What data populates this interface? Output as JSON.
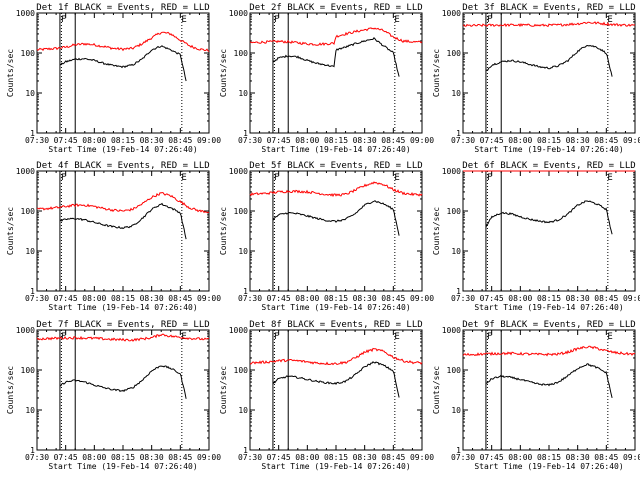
{
  "figure": {
    "xlabel": "Start Time (19-Feb-14 07:26:40)",
    "ylabel": "Counts/sec",
    "x_tick_labels": [
      "07:30",
      "07:45",
      "08:00",
      "08:15",
      "08:30",
      "08:45",
      "09:00"
    ],
    "y_tick_labels": [
      "1",
      "10",
      "100",
      "1000"
    ],
    "marker_letters": [
      "F",
      "E"
    ],
    "colors": {
      "events": "#000000",
      "lld": "#ff0000",
      "axes": "#000000",
      "background": "#ffffff"
    }
  },
  "chart_data": [
    {
      "type": "line",
      "title": "Det 1f BLACK = Events, RED = LLD",
      "xlabel": "Start Time (19-Feb-14 07:26:40)",
      "ylabel": "Counts/sec",
      "ylog": true,
      "ylim": [
        1,
        1000
      ],
      "xlim": [
        "07:30",
        "09:00"
      ],
      "vlines_solid": [
        "07:42",
        "07:50"
      ],
      "vlines_dotted": [
        "07:42",
        "08:45"
      ],
      "markers": [
        {
          "label": "F",
          "x": "07:42"
        },
        {
          "label": "E",
          "x": "08:45"
        }
      ],
      "series": [
        {
          "name": "Events",
          "color": "#000000",
          "x": [
            "07:42",
            "07:45",
            "07:50",
            "07:55",
            "08:00",
            "08:05",
            "08:10",
            "08:15",
            "08:20",
            "08:25",
            "08:30",
            "08:35",
            "08:40",
            "08:45",
            "08:48"
          ],
          "y": [
            50,
            60,
            70,
            72,
            65,
            55,
            48,
            45,
            50,
            70,
            120,
            150,
            120,
            90,
            20
          ]
        },
        {
          "name": "LLD",
          "color": "#ff0000",
          "x": [
            "07:30",
            "07:35",
            "07:40",
            "07:45",
            "07:50",
            "07:55",
            "08:00",
            "08:05",
            "08:10",
            "08:15",
            "08:20",
            "08:25",
            "08:30",
            "08:35",
            "08:40",
            "08:45",
            "08:50",
            "08:55",
            "09:00"
          ],
          "y": [
            120,
            125,
            130,
            140,
            160,
            170,
            160,
            145,
            130,
            125,
            130,
            170,
            240,
            330,
            300,
            210,
            150,
            125,
            115
          ]
        }
      ]
    },
    {
      "type": "line",
      "title": "Det 2f BLACK = Events, RED = LLD",
      "xlabel": "Start Time (19-Feb-14 07:26:40)",
      "ylabel": "Counts/sec",
      "ylog": true,
      "ylim": [
        1,
        1000
      ],
      "xlim": [
        "07:30",
        "09:00"
      ],
      "vlines_solid": [
        "07:42",
        "07:50"
      ],
      "vlines_dotted": [
        "07:42",
        "08:45"
      ],
      "markers": [
        {
          "label": "F",
          "x": "07:42"
        },
        {
          "label": "E",
          "x": "08:45"
        }
      ],
      "series": [
        {
          "name": "Events",
          "color": "#000000",
          "x": [
            "07:42",
            "07:45",
            "07:50",
            "07:55",
            "08:00",
            "08:05",
            "08:10",
            "08:14",
            "08:15",
            "08:20",
            "08:25",
            "08:30",
            "08:35",
            "08:40",
            "08:45",
            "08:48"
          ],
          "y": [
            60,
            75,
            85,
            80,
            65,
            55,
            50,
            45,
            120,
            140,
            170,
            200,
            230,
            150,
            100,
            25
          ]
        },
        {
          "name": "LLD",
          "color": "#ff0000",
          "x": [
            "07:30",
            "07:35",
            "07:40",
            "07:45",
            "07:50",
            "07:55",
            "08:00",
            "08:05",
            "08:10",
            "08:14",
            "08:15",
            "08:20",
            "08:25",
            "08:30",
            "08:35",
            "08:40",
            "08:45",
            "08:50",
            "08:55",
            "09:00"
          ],
          "y": [
            180,
            185,
            190,
            195,
            190,
            180,
            170,
            165,
            170,
            175,
            260,
            300,
            340,
            380,
            420,
            360,
            250,
            200,
            190,
            185
          ]
        }
      ]
    },
    {
      "type": "line",
      "title": "Det 3f BLACK = Events, RED = LLD",
      "xlabel": "Start Time (19-Feb-14 07:26:40)",
      "ylabel": "Counts/sec",
      "ylog": true,
      "ylim": [
        1,
        1000
      ],
      "xlim": [
        "07:30",
        "09:00"
      ],
      "vlines_solid": [
        "07:42",
        "07:50"
      ],
      "vlines_dotted": [
        "07:42",
        "08:45"
      ],
      "markers": [
        {
          "label": "F",
          "x": "07:42"
        },
        {
          "label": "E",
          "x": "08:45"
        }
      ],
      "series": [
        {
          "name": "Events",
          "color": "#000000",
          "x": [
            "07:42",
            "07:45",
            "07:50",
            "07:55",
            "08:00",
            "08:05",
            "08:10",
            "08:15",
            "08:20",
            "08:25",
            "08:30",
            "08:35",
            "08:40",
            "08:45",
            "08:48"
          ],
          "y": [
            35,
            50,
            60,
            65,
            60,
            52,
            45,
            42,
            48,
            65,
            110,
            160,
            140,
            100,
            25
          ]
        },
        {
          "name": "LLD",
          "color": "#ff0000",
          "x": [
            "07:30",
            "07:40",
            "07:50",
            "08:00",
            "08:10",
            "08:20",
            "08:30",
            "08:35",
            "08:40",
            "08:50",
            "09:00"
          ],
          "y": [
            480,
            490,
            500,
            500,
            490,
            500,
            540,
            580,
            560,
            510,
            490
          ]
        }
      ]
    },
    {
      "type": "line",
      "title": "Det 4f BLACK = Events, RED = LLD",
      "xlabel": "Start Time (19-Feb-14 07:26:40)",
      "ylabel": "Counts/sec",
      "ylog": true,
      "ylim": [
        1,
        1000
      ],
      "xlim": [
        "07:30",
        "09:00"
      ],
      "vlines_solid": [
        "07:42",
        "07:50"
      ],
      "vlines_dotted": [
        "07:42",
        "08:45"
      ],
      "markers": [
        {
          "label": "F",
          "x": "07:42"
        },
        {
          "label": "E",
          "x": "08:45"
        }
      ],
      "series": [
        {
          "name": "Events",
          "color": "#000000",
          "x": [
            "07:42",
            "07:45",
            "07:50",
            "07:55",
            "08:00",
            "08:05",
            "08:10",
            "08:15",
            "08:20",
            "08:25",
            "08:30",
            "08:35",
            "08:40",
            "08:45",
            "08:48"
          ],
          "y": [
            55,
            62,
            65,
            60,
            52,
            45,
            40,
            38,
            42,
            65,
            110,
            150,
            120,
            90,
            20
          ]
        },
        {
          "name": "LLD",
          "color": "#ff0000",
          "x": [
            "07:30",
            "07:35",
            "07:40",
            "07:45",
            "07:50",
            "07:55",
            "08:00",
            "08:05",
            "08:10",
            "08:15",
            "08:20",
            "08:25",
            "08:30",
            "08:35",
            "08:40",
            "08:45",
            "08:50",
            "08:55",
            "09:00"
          ],
          "y": [
            110,
            115,
            120,
            130,
            140,
            140,
            130,
            115,
            105,
            100,
            110,
            150,
            220,
            280,
            240,
            170,
            120,
            100,
            95
          ]
        }
      ]
    },
    {
      "type": "line",
      "title": "Det 5f BLACK = Events, RED = LLD",
      "xlabel": "Start Time (19-Feb-14 07:26:40)",
      "ylabel": "Counts/sec",
      "ylog": true,
      "ylim": [
        1,
        1000
      ],
      "xlim": [
        "07:30",
        "09:00"
      ],
      "vlines_solid": [
        "07:42",
        "07:50"
      ],
      "vlines_dotted": [
        "07:42",
        "08:45"
      ],
      "markers": [
        {
          "label": "F",
          "x": "07:42"
        },
        {
          "label": "E",
          "x": "08:45"
        }
      ],
      "series": [
        {
          "name": "Events",
          "color": "#000000",
          "x": [
            "07:42",
            "07:45",
            "07:50",
            "07:55",
            "08:00",
            "08:05",
            "08:10",
            "08:15",
            "08:20",
            "08:25",
            "08:30",
            "08:35",
            "08:40",
            "08:45",
            "08:48"
          ],
          "y": [
            60,
            80,
            90,
            85,
            75,
            65,
            58,
            55,
            62,
            85,
            140,
            180,
            150,
            110,
            25
          ]
        },
        {
          "name": "LLD",
          "color": "#ff0000",
          "x": [
            "07:30",
            "07:35",
            "07:40",
            "07:45",
            "07:50",
            "07:55",
            "08:00",
            "08:05",
            "08:10",
            "08:15",
            "08:20",
            "08:25",
            "08:30",
            "08:35",
            "08:40",
            "08:45",
            "08:50",
            "08:55",
            "09:00"
          ],
          "y": [
            260,
            270,
            280,
            300,
            310,
            310,
            300,
            280,
            260,
            250,
            260,
            330,
            430,
            520,
            460,
            340,
            280,
            260,
            255
          ]
        }
      ]
    },
    {
      "type": "line",
      "title": "Det 6f BLACK = Events, RED = LLD",
      "xlabel": "Start Time (19-Feb-14 07:26:40)",
      "ylabel": "Counts/sec",
      "ylog": true,
      "ylim": [
        1,
        1000
      ],
      "xlim": [
        "07:30",
        "09:00"
      ],
      "vlines_solid": [
        "07:42",
        "07:50"
      ],
      "vlines_dotted": [
        "07:42",
        "08:45"
      ],
      "markers": [
        {
          "label": "F",
          "x": "07:42"
        },
        {
          "label": "E",
          "x": "08:45"
        }
      ],
      "series": [
        {
          "name": "Events",
          "color": "#000000",
          "x": [
            "07:42",
            "07:45",
            "07:50",
            "07:55",
            "08:00",
            "08:05",
            "08:10",
            "08:15",
            "08:20",
            "08:25",
            "08:30",
            "08:35",
            "08:40",
            "08:45",
            "08:48"
          ],
          "y": [
            40,
            70,
            90,
            85,
            72,
            62,
            56,
            52,
            60,
            85,
            140,
            180,
            150,
            110,
            25
          ]
        },
        {
          "name": "LLD",
          "color": "#ff0000",
          "x": [
            "07:30",
            "08:00",
            "08:30",
            "09:00"
          ],
          "y": [
            1000,
            1000,
            1000,
            1000
          ]
        }
      ]
    },
    {
      "type": "line",
      "title": "Det 7f BLACK = Events, RED = LLD",
      "xlabel": "Start Time (19-Feb-14 07:26:40)",
      "ylabel": "Counts/sec",
      "ylog": true,
      "ylim": [
        1,
        1000
      ],
      "xlim": [
        "07:30",
        "09:00"
      ],
      "vlines_solid": [
        "07:42",
        "07:50"
      ],
      "vlines_dotted": [
        "07:42",
        "08:45"
      ],
      "markers": [
        {
          "label": "F",
          "x": "07:42"
        },
        {
          "label": "E",
          "x": "08:45"
        }
      ],
      "series": [
        {
          "name": "Events",
          "color": "#000000",
          "x": [
            "07:42",
            "07:45",
            "07:50",
            "07:55",
            "08:00",
            "08:05",
            "08:10",
            "08:15",
            "08:20",
            "08:25",
            "08:30",
            "08:35",
            "08:40",
            "08:45",
            "08:48"
          ],
          "y": [
            40,
            50,
            55,
            50,
            42,
            36,
            32,
            30,
            36,
            55,
            95,
            130,
            110,
            80,
            20
          ]
        },
        {
          "name": "LLD",
          "color": "#ff0000",
          "x": [
            "07:30",
            "07:40",
            "07:50",
            "08:00",
            "08:10",
            "08:20",
            "08:30",
            "08:35",
            "08:40",
            "08:50",
            "09:00"
          ],
          "y": [
            600,
            620,
            640,
            620,
            580,
            560,
            640,
            780,
            700,
            620,
            580
          ]
        }
      ]
    },
    {
      "type": "line",
      "title": "Det 8f BLACK = Events, RED = LLD",
      "xlabel": "Start Time (19-Feb-14 07:26:40)",
      "ylabel": "Counts/sec",
      "ylog": true,
      "ylim": [
        1,
        1000
      ],
      "xlim": [
        "07:30",
        "09:00"
      ],
      "vlines_solid": [
        "07:42",
        "07:50"
      ],
      "vlines_dotted": [
        "07:42",
        "08:45"
      ],
      "markers": [
        {
          "label": "F",
          "x": "07:42"
        },
        {
          "label": "E",
          "x": "08:45"
        }
      ],
      "series": [
        {
          "name": "Events",
          "color": "#000000",
          "x": [
            "07:42",
            "07:45",
            "07:50",
            "07:55",
            "08:00",
            "08:05",
            "08:10",
            "08:15",
            "08:20",
            "08:25",
            "08:30",
            "08:35",
            "08:40",
            "08:45",
            "08:48"
          ],
          "y": [
            45,
            60,
            70,
            65,
            58,
            52,
            48,
            46,
            52,
            75,
            120,
            160,
            130,
            95,
            20
          ]
        },
        {
          "name": "LLD",
          "color": "#ff0000",
          "x": [
            "07:30",
            "07:35",
            "07:40",
            "07:45",
            "07:50",
            "07:55",
            "08:00",
            "08:05",
            "08:10",
            "08:15",
            "08:20",
            "08:25",
            "08:30",
            "08:35",
            "08:40",
            "08:45",
            "08:50",
            "08:55",
            "09:00"
          ],
          "y": [
            150,
            155,
            160,
            170,
            175,
            170,
            160,
            150,
            145,
            145,
            155,
            200,
            280,
            330,
            290,
            210,
            170,
            155,
            150
          ]
        }
      ]
    },
    {
      "type": "line",
      "title": "Det 9f BLACK = Events, RED = LLD",
      "xlabel": "Start Time (19-Feb-14 07:26:40)",
      "ylabel": "Counts/sec",
      "ylog": true,
      "ylim": [
        1,
        1000
      ],
      "xlim": [
        "07:30",
        "09:00"
      ],
      "vlines_solid": [
        "07:42",
        "07:50"
      ],
      "vlines_dotted": [
        "07:42",
        "08:45"
      ],
      "markers": [
        {
          "label": "F",
          "x": "07:42"
        },
        {
          "label": "E",
          "x": "08:45"
        }
      ],
      "series": [
        {
          "name": "Events",
          "color": "#000000",
          "x": [
            "07:42",
            "07:45",
            "07:50",
            "07:55",
            "08:00",
            "08:05",
            "08:10",
            "08:15",
            "08:20",
            "08:25",
            "08:30",
            "08:35",
            "08:40",
            "08:45",
            "08:48"
          ],
          "y": [
            45,
            60,
            70,
            65,
            58,
            50,
            44,
            42,
            50,
            72,
            110,
            140,
            115,
            85,
            20
          ]
        },
        {
          "name": "LLD",
          "color": "#ff0000",
          "x": [
            "07:30",
            "07:35",
            "07:40",
            "07:45",
            "07:50",
            "07:55",
            "08:00",
            "08:05",
            "08:10",
            "08:15",
            "08:20",
            "08:25",
            "08:30",
            "08:35",
            "08:40",
            "08:45",
            "08:50",
            "08:55",
            "09:00"
          ],
          "y": [
            240,
            245,
            250,
            255,
            260,
            260,
            255,
            250,
            245,
            245,
            250,
            280,
            340,
            380,
            350,
            300,
            270,
            255,
            250
          ]
        }
      ]
    }
  ]
}
